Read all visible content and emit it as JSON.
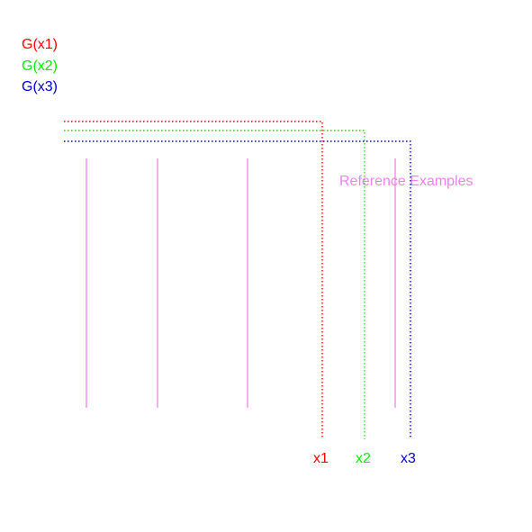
{
  "legend": {
    "g1": "G(x1)",
    "g2": "G(x2)",
    "g3": "G(x3)"
  },
  "annotation": "Reference Examples",
  "axis_labels": {
    "x1": "x1",
    "x2": "x2",
    "x3": "x3"
  },
  "colors": {
    "red": "#ff0000",
    "green": "#00ee00",
    "blue": "#0000cc",
    "violet": "#ee82ee"
  },
  "line_style": "dotted"
}
